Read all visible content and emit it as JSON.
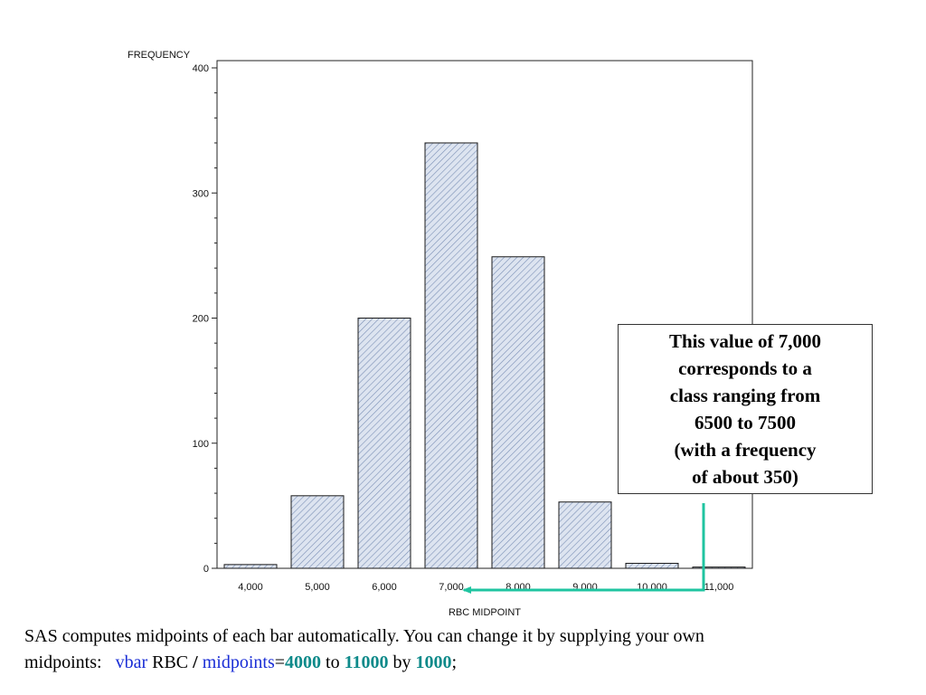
{
  "chart_data": {
    "type": "bar",
    "ylabel": "FREQUENCY",
    "xlabel": "RBC MIDPOINT",
    "categories": [
      "4,000",
      "5,000",
      "6,000",
      "7,000",
      "8,000",
      "9,000",
      "10,000",
      "11,000"
    ],
    "values": [
      3,
      58,
      200,
      340,
      249,
      53,
      4,
      1
    ],
    "yticks": [
      0,
      100,
      200,
      300,
      400
    ],
    "ylim": [
      0,
      400
    ],
    "bar_fill": "diagonal hatch",
    "colors": {
      "bar_fill": "#dde4f0",
      "hatch": "#7a8fb5",
      "bar_stroke": "#1a1a1a",
      "arrow": "#1fc4a0"
    }
  },
  "callout": {
    "lines": [
      "This value of 7,000",
      "corresponds to a",
      "class ranging from",
      "6500 to 7500",
      "(with a frequency",
      "of about 350)"
    ]
  },
  "caption": {
    "line1": "SAS computes midpoints of each bar automatically. You can change it by supplying your own",
    "prefix": "midpoints:",
    "kw_vbar": "vbar",
    "var": "RBC",
    "slash": "/",
    "kw_midpoints": "midpoints",
    "eq": "=",
    "start": "4000",
    "to": "to",
    "end": "11000",
    "by": "by",
    "step": "1000",
    "semicolon": ";",
    "colors": {
      "keyword": "#1a2ed6",
      "number": "#0e8a8a"
    }
  }
}
